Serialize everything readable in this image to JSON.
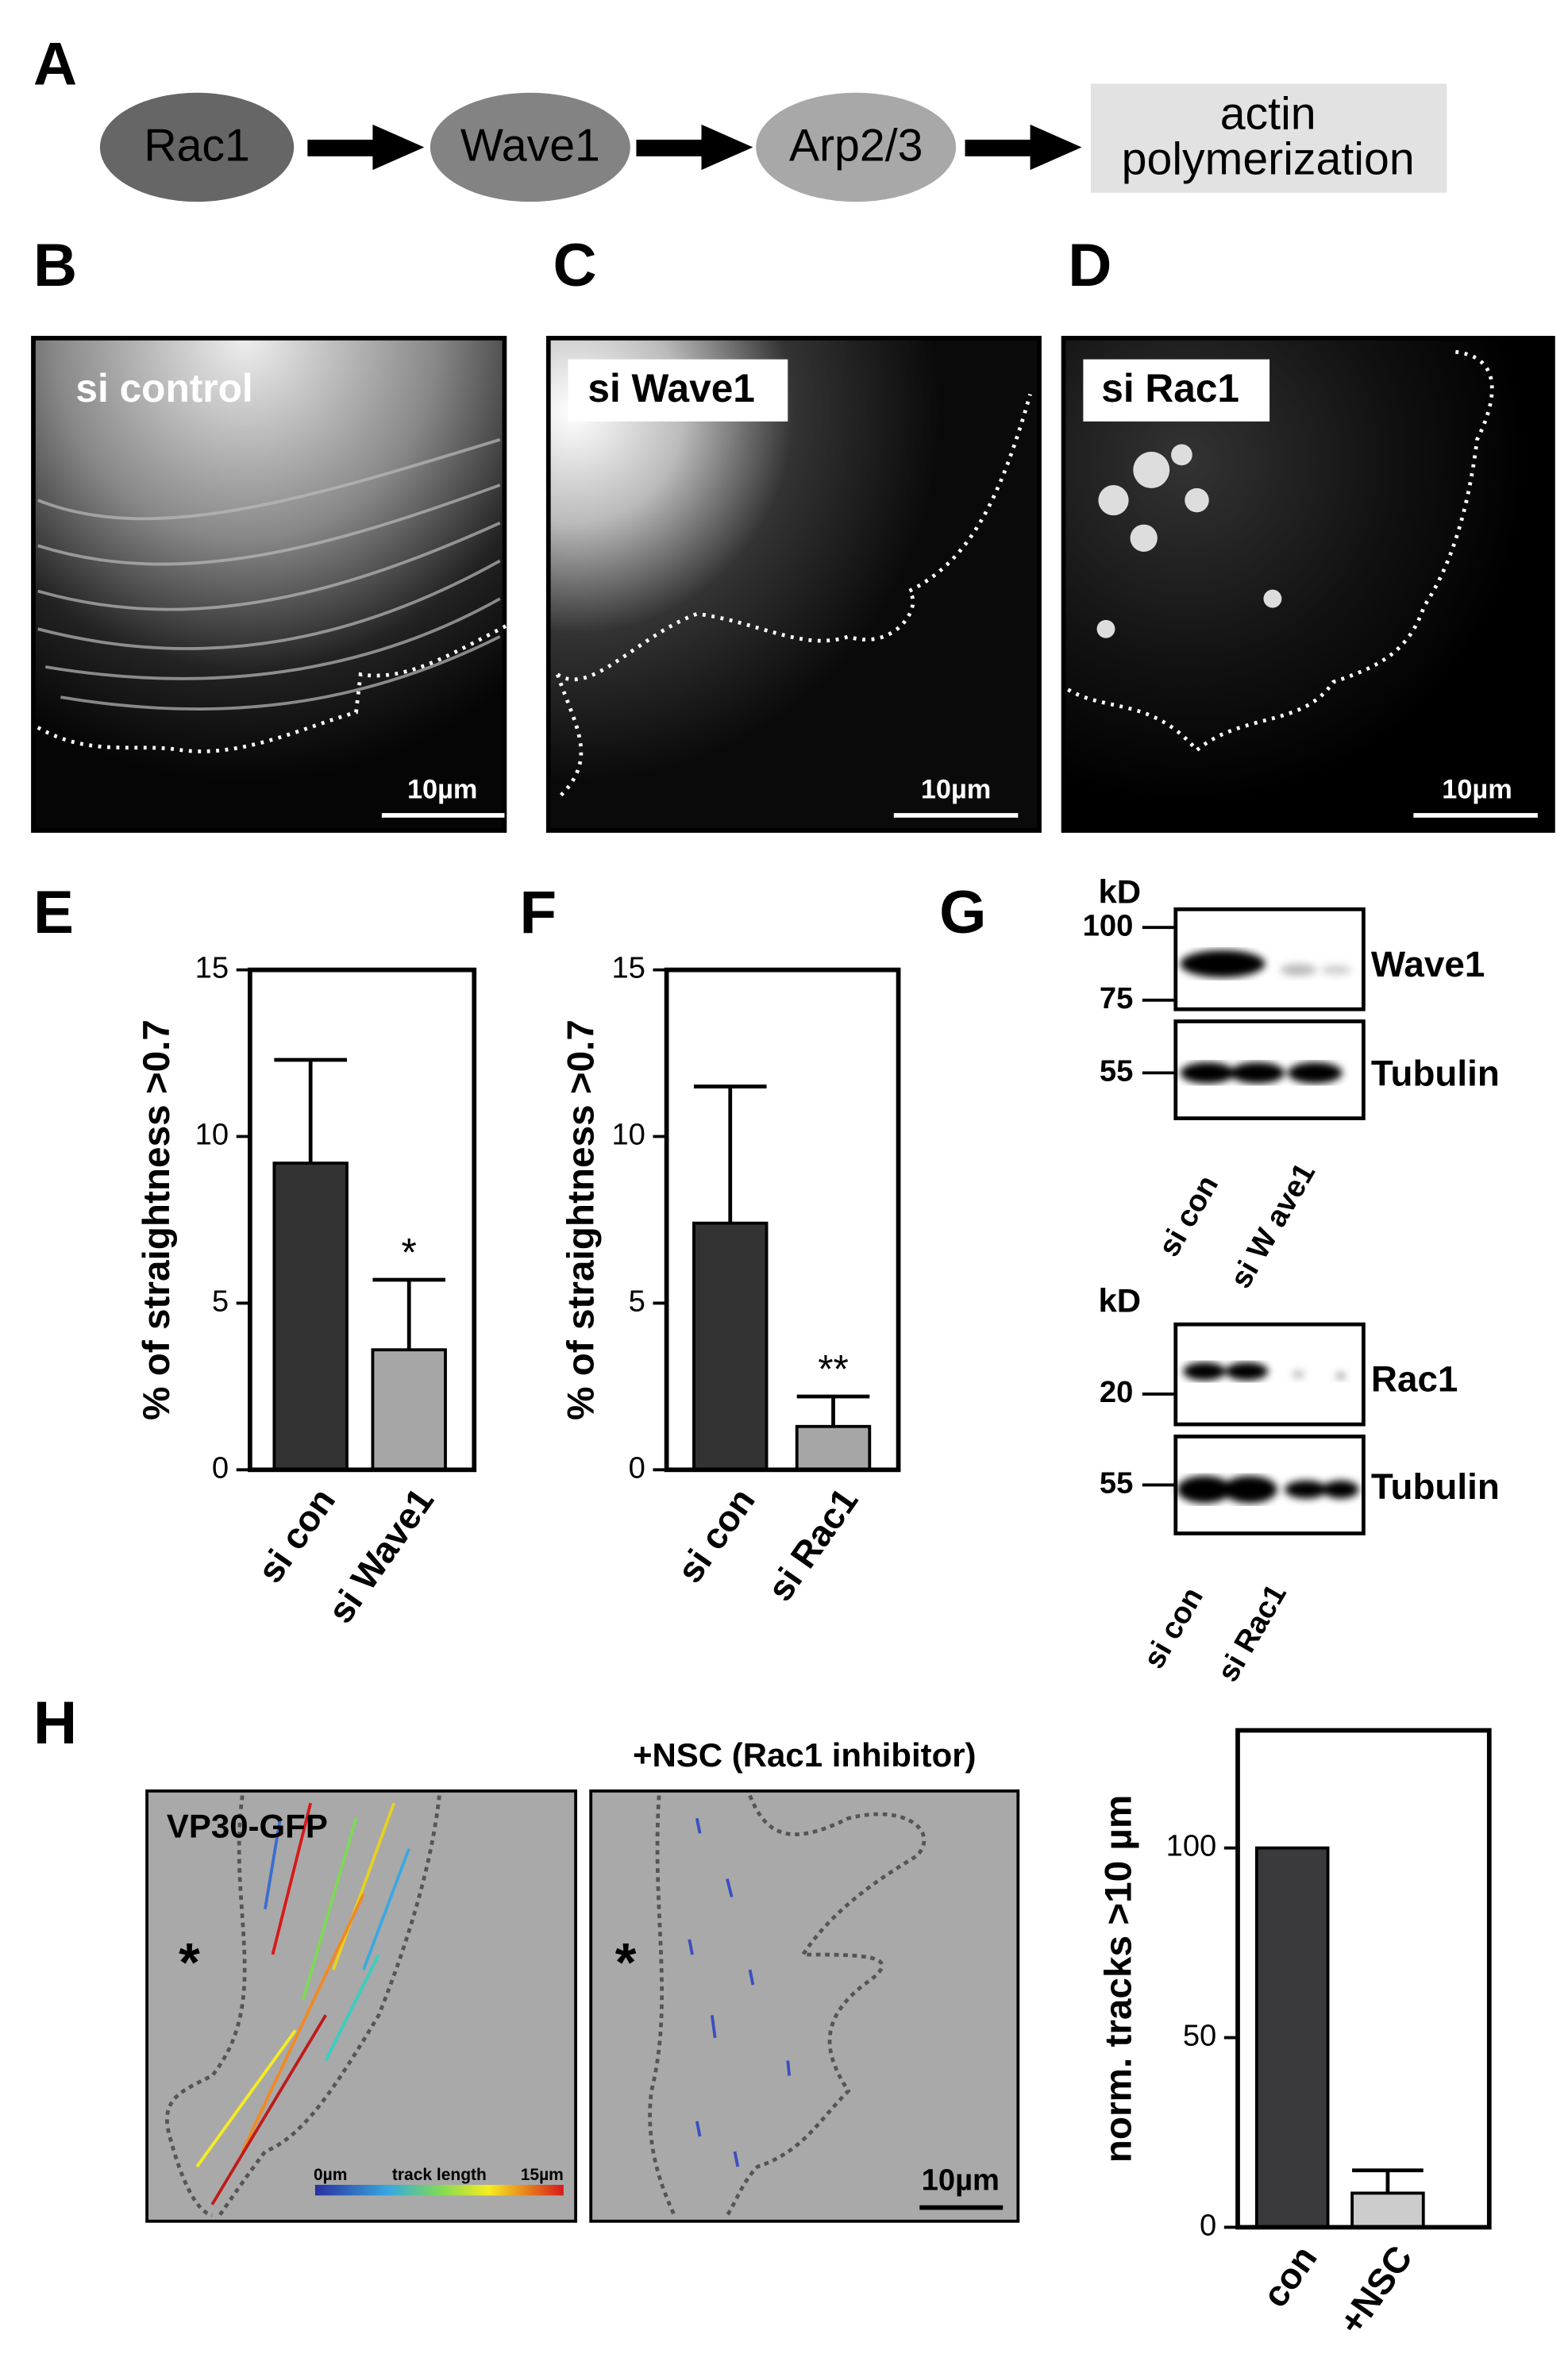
{
  "panel_labels": [
    "A",
    "B",
    "C",
    "D",
    "E",
    "F",
    "G",
    "H"
  ],
  "pathway": {
    "nodes": [
      "Rac1",
      "Wave1",
      "Arp2/3"
    ],
    "output": [
      "actin",
      "polymerization"
    ]
  },
  "micrographs": [
    {
      "label": "si control",
      "scale_bar": "10µm"
    },
    {
      "label": "si Wave1",
      "scale_bar": "10µm"
    },
    {
      "label": "si Rac1",
      "scale_bar": "10µm"
    }
  ],
  "blots": [
    {
      "unit": "kD",
      "markers": [
        100,
        75,
        55
      ],
      "proteins": [
        "Wave1",
        "Tubulin"
      ],
      "lanes": [
        "si con",
        "si W ave1"
      ]
    },
    {
      "unit": "kD",
      "markers": [
        20,
        55
      ],
      "proteins": [
        "Rac1",
        "Tubulin"
      ],
      "lanes": [
        "si con",
        "si Rac1"
      ]
    }
  ],
  "tracking": {
    "panels": [
      {
        "label": "VP30-GFP",
        "marker": "*"
      },
      {
        "title": "+NSC (Rac1 inhibitor)",
        "marker": "*",
        "scale_bar": "10µm"
      }
    ],
    "colorbar": {
      "min_label": "0µm",
      "title": "track length",
      "max_label": "15µm"
    }
  },
  "chart_data": [
    {
      "type": "bar",
      "y_label": "% of straightness >0.7",
      "categories": [
        "si con",
        "si Wave1"
      ],
      "values": [
        9.2,
        3.6
      ],
      "errors": [
        3.1,
        2.1
      ],
      "colors": [
        "#333333",
        "#a6a6a6"
      ],
      "annotations": [
        {
          "category": "si Wave1",
          "text": "*"
        }
      ],
      "ylim": [
        0,
        15
      ],
      "yticks": [
        0,
        5,
        10,
        15
      ]
    },
    {
      "type": "bar",
      "y_label": "% of straightness >0.7",
      "categories": [
        "si con",
        "si Rac1"
      ],
      "values": [
        7.4,
        1.3
      ],
      "errors": [
        4.1,
        0.9
      ],
      "colors": [
        "#333333",
        "#a6a6a6"
      ],
      "annotations": [
        {
          "category": "si Rac1",
          "text": "**"
        }
      ],
      "ylim": [
        0,
        15
      ],
      "yticks": [
        0,
        5,
        10,
        15
      ]
    },
    {
      "type": "bar",
      "y_label": "norm. tracks >10 µm",
      "categories": [
        "con",
        "+NSC"
      ],
      "values": [
        100,
        9
      ],
      "errors": [
        null,
        6
      ],
      "colors": [
        "#3a3a3e",
        "#cccccc"
      ],
      "annotations": [],
      "ylim": [
        0,
        131
      ],
      "yticks": [
        0,
        50,
        100
      ]
    }
  ]
}
